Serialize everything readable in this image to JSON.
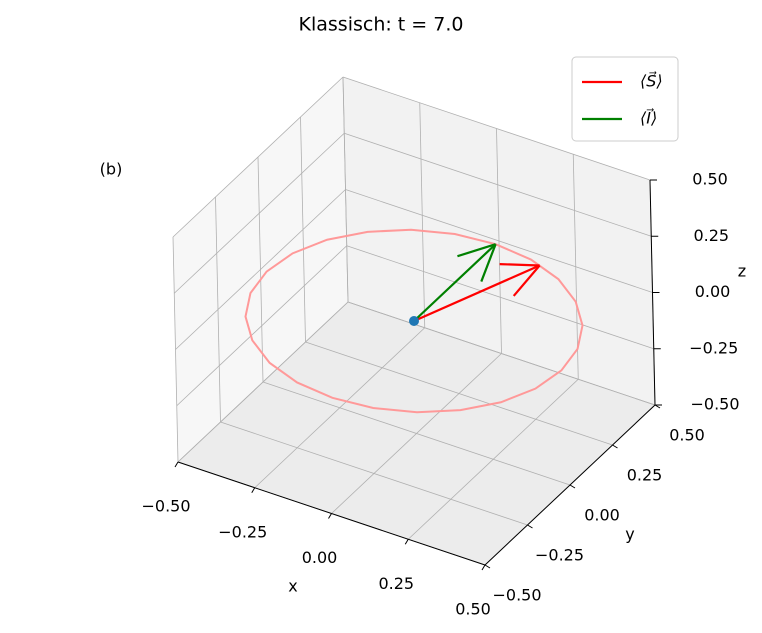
{
  "chart_data": {
    "type": "quiver3d",
    "title": "Klassisch: t = 7.0",
    "annotation": "(b)",
    "x_label": "x",
    "y_label": "y",
    "z_label": "z",
    "xlim": [
      -0.5,
      0.5
    ],
    "ylim": [
      -0.5,
      0.5
    ],
    "zlim": [
      -0.5,
      0.5
    ],
    "xticks": [
      {
        "value": -0.5,
        "label": "−0.50"
      },
      {
        "value": -0.25,
        "label": "−0.25"
      },
      {
        "value": 0,
        "label": "0.00"
      },
      {
        "value": 0.25,
        "label": "0.25"
      },
      {
        "value": 0.5,
        "label": "0.50"
      }
    ],
    "yticks": [
      {
        "value": -0.5,
        "label": "−0.50"
      },
      {
        "value": -0.25,
        "label": "−0.25"
      },
      {
        "value": 0,
        "label": "0.00"
      },
      {
        "value": 0.25,
        "label": "0.25"
      },
      {
        "value": 0.5,
        "label": "0.50"
      }
    ],
    "zticks": [
      {
        "value": -0.5,
        "label": "−0.50"
      },
      {
        "value": -0.25,
        "label": "−0.25"
      },
      {
        "value": 0,
        "label": "0.00"
      },
      {
        "value": 0.25,
        "label": "0.25"
      },
      {
        "value": 0.5,
        "label": "0.50"
      }
    ],
    "grid": true,
    "legend": "upper right",
    "origin": {
      "color": "#1f77b4",
      "values": [
        0,
        0,
        0
      ]
    },
    "series": [
      {
        "name": "⟨S⃗⟩",
        "color": "#ff0000",
        "values": [
          0.16,
          0.45,
          0
        ]
      },
      {
        "name": "⟨I⃗⟩",
        "color": "#008000",
        "values": [
          0,
          0.48,
          0
        ]
      }
    ],
    "trajectory": {
      "color": "#ff9999",
      "x": [
        0.48,
        0.464,
        0.416,
        0.339,
        0.24,
        0.124,
        0,
        -0.124,
        -0.24,
        -0.339,
        -0.416,
        -0.464,
        -0.48,
        -0.464,
        -0.416,
        -0.339,
        -0.24,
        -0.124,
        0,
        0.124,
        0.24,
        0.339,
        0.416,
        0.464
      ],
      "y": [
        0,
        0.124,
        0.24,
        0.339,
        0.416,
        0.464,
        0.48,
        0.464,
        0.416,
        0.339,
        0.24,
        0.124,
        0,
        -0.124,
        -0.24,
        -0.339,
        -0.416,
        -0.464,
        -0.48,
        -0.464,
        -0.416,
        -0.339,
        -0.24,
        -0.124
      ],
      "z": [
        0,
        0,
        0,
        0,
        0,
        0,
        0,
        0,
        0,
        0,
        0,
        0,
        0,
        0,
        0,
        0,
        0,
        0,
        0,
        0,
        0,
        0,
        0,
        0
      ]
    }
  }
}
